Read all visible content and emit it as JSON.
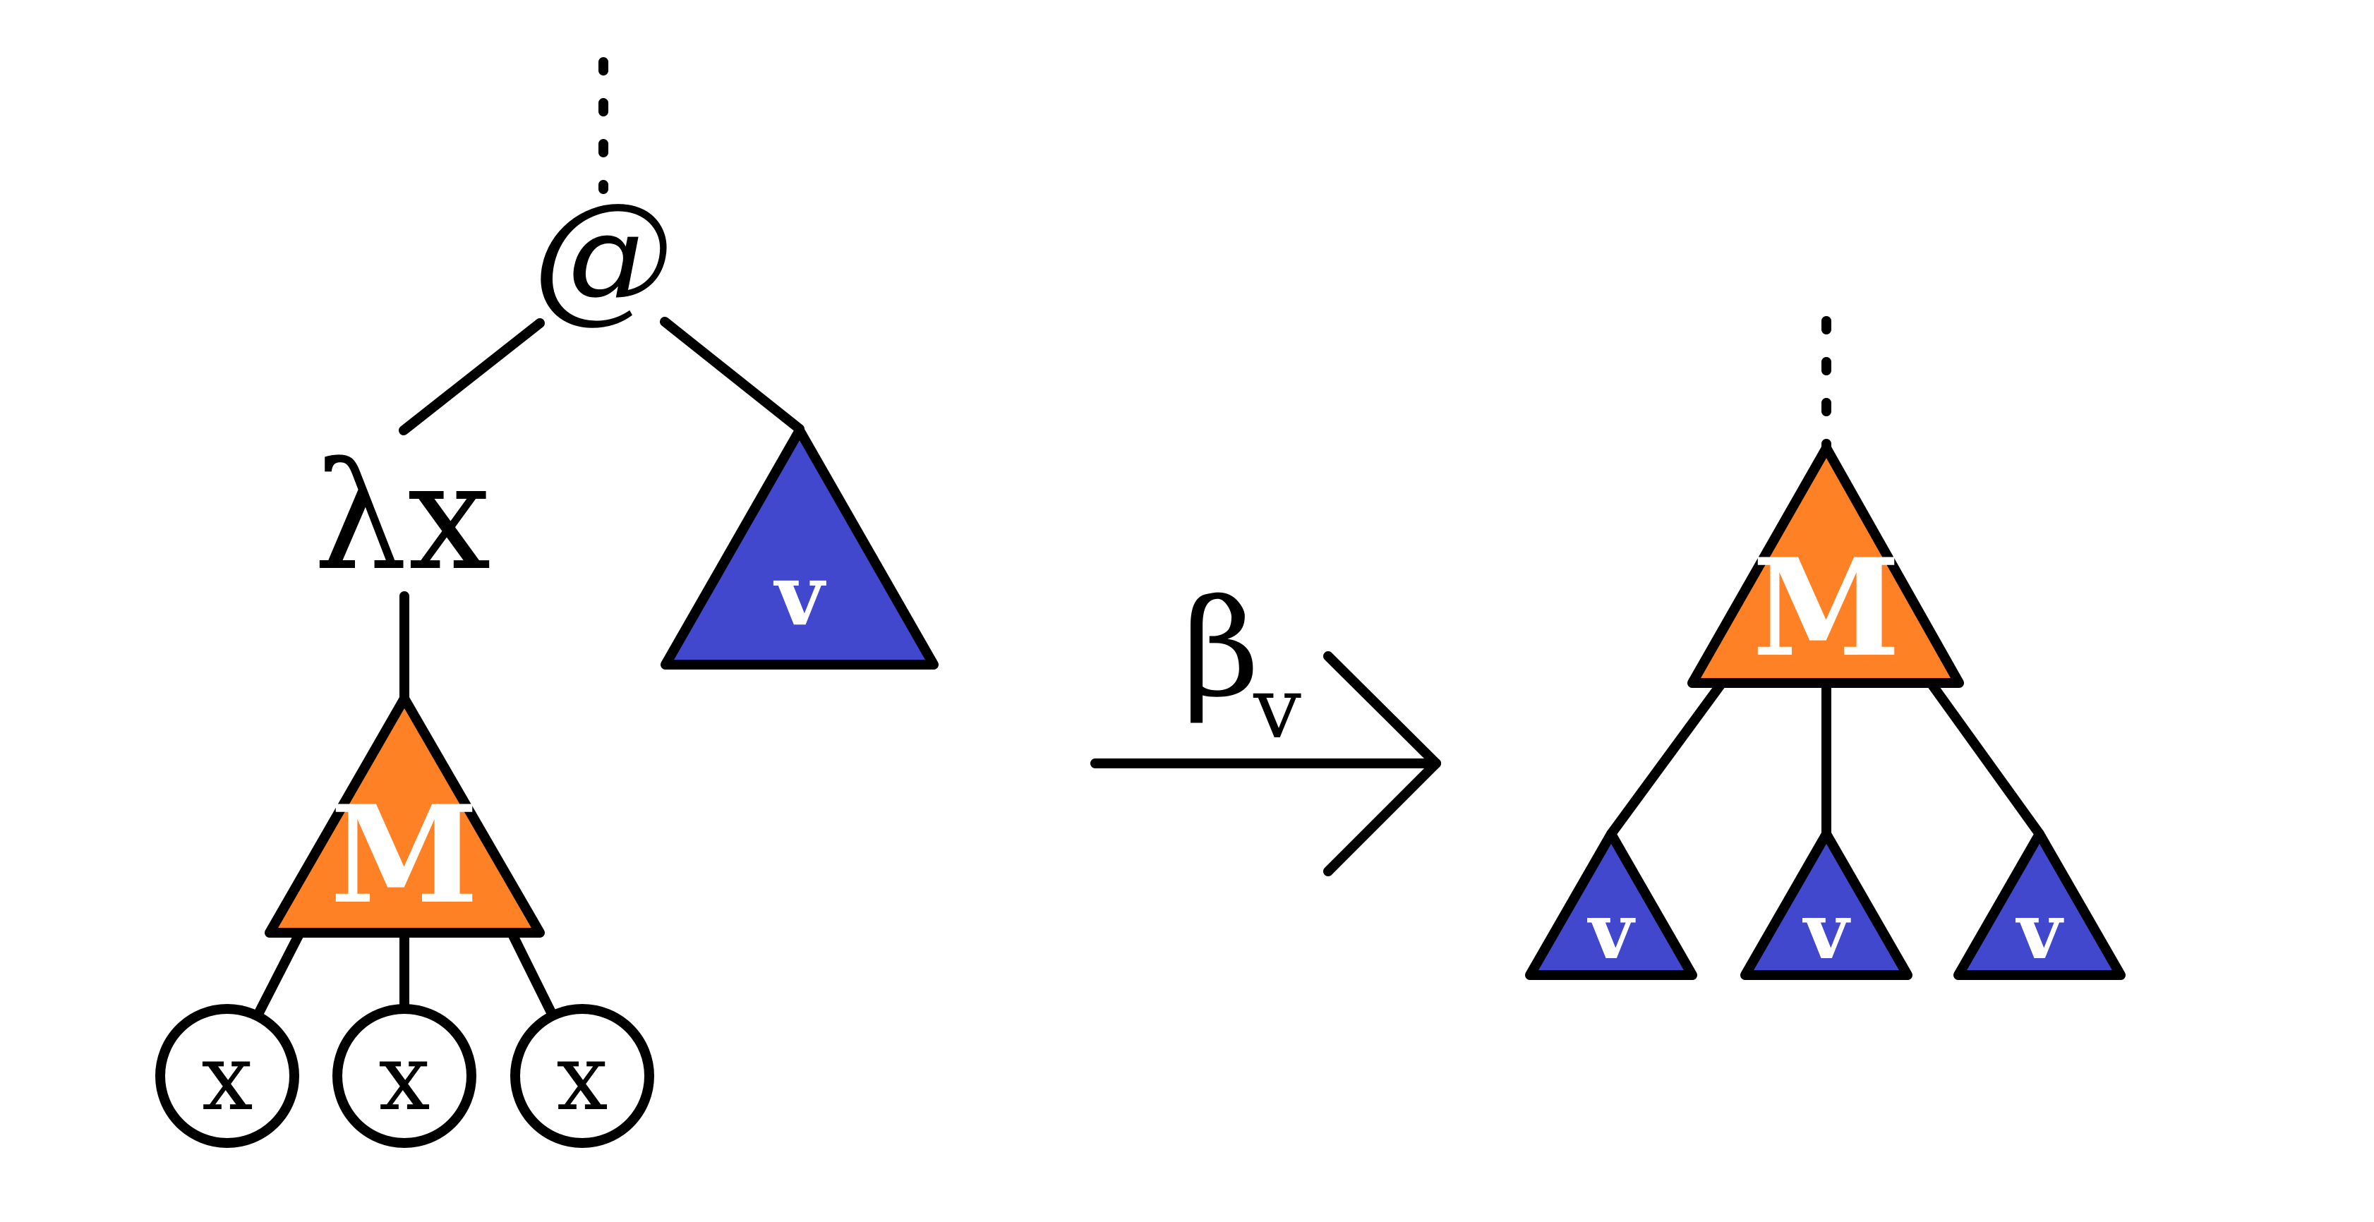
{
  "diagram": {
    "left_tree": {
      "app_node_label": "@",
      "lambda_label": "λx",
      "body_label": "M",
      "argument_label": "v",
      "variable_labels": [
        "x",
        "x",
        "x"
      ]
    },
    "reduction_arrow": {
      "symbol": "β",
      "subscript": "v"
    },
    "right_tree": {
      "body_label": "M",
      "substituted_labels": [
        "v",
        "v",
        "v"
      ]
    }
  },
  "colors": {
    "orange": "#FF8126",
    "blue": "#4148CD",
    "line": "#000000",
    "background": "#FFFFFF"
  }
}
